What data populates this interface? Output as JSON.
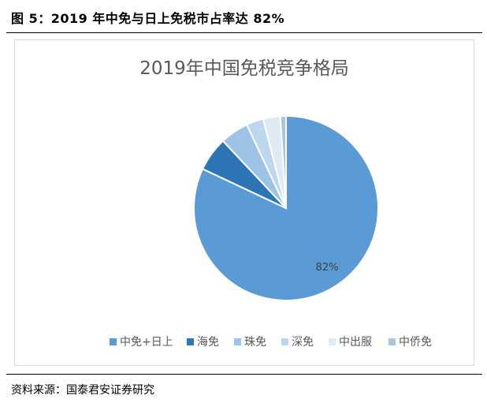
{
  "figure": {
    "caption": "图 5：2019 年中免与日上免税市占率达 82%",
    "source": "资料来源：国泰君安证券研究"
  },
  "chart_data": {
    "type": "pie",
    "title": "2019年中国免税竞争格局",
    "categories": [
      "中免+日上",
      "海免",
      "珠免",
      "深免",
      "中出服",
      "中侨免"
    ],
    "values": [
      82,
      6,
      5,
      3,
      3,
      1
    ],
    "data_labels": [
      "82%",
      "",
      "",
      "",
      "",
      ""
    ],
    "colors": [
      "#5b9bd5",
      "#2e75b6",
      "#9dc3e6",
      "#bdd7ee",
      "#deebf7",
      "#a9c4de"
    ],
    "legend_position": "bottom",
    "start_angle_deg": 0,
    "direction": "clockwise"
  }
}
